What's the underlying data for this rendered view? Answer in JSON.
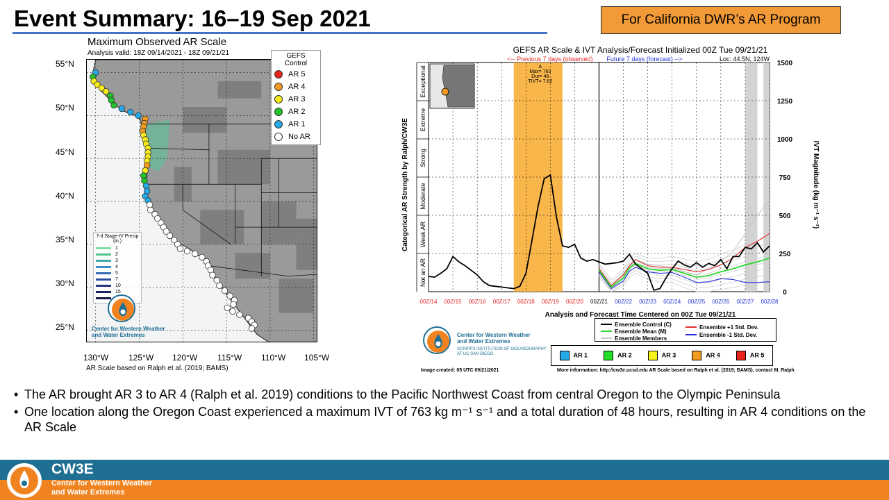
{
  "slide": {
    "title": "Event Summary: 16–19 Sep 2021",
    "badge": "For California DWR’s AR Program"
  },
  "map": {
    "title": "Maximum Observed AR Scale",
    "subtitle": "Analysis valid: 18Z 09/14/2021 - 18Z 09/21/21",
    "legend_header": "GEFS Control",
    "legend": [
      {
        "label": "AR 5",
        "color": "#e8221c"
      },
      {
        "label": "AR 4",
        "color": "#f39a1f"
      },
      {
        "label": "AR 3",
        "color": "#f7ec1c"
      },
      {
        "label": "AR 2",
        "color": "#22c22a"
      },
      {
        "label": "AR 1",
        "color": "#25a9e8"
      },
      {
        "label": "No AR",
        "color": "#ffffff"
      }
    ],
    "lat_labels": [
      "55°N",
      "50°N",
      "45°N",
      "40°N",
      "35°N",
      "30°N",
      "25°N"
    ],
    "lon_labels": [
      "130°W",
      "125°W",
      "120°W",
      "115°W",
      "110°W",
      "105°W"
    ],
    "precip_key_title": "7-d Stage-IV Precip (in.)",
    "precip_key": [
      "1",
      "2",
      "3",
      "4",
      "5",
      "7",
      "10",
      "15",
      "20"
    ],
    "credit": "AR Scale based on Ralph et al. (2019; BAMS)",
    "logo_text": [
      "Center for Western Weather",
      "and Water Extremes"
    ],
    "coast_points": [
      {
        "lat": 55.0,
        "lon": -130.0,
        "ar": 1
      },
      {
        "lat": 54.5,
        "lon": -130.3,
        "ar": 2
      },
      {
        "lat": 54.0,
        "lon": -130.2,
        "ar": 3
      },
      {
        "lat": 53.6,
        "lon": -129.8,
        "ar": 3
      },
      {
        "lat": 53.2,
        "lon": -129.3,
        "ar": 3
      },
      {
        "lat": 52.8,
        "lon": -128.8,
        "ar": 3
      },
      {
        "lat": 52.3,
        "lon": -128.3,
        "ar": 2
      },
      {
        "lat": 51.8,
        "lon": -128.2,
        "ar": 2
      },
      {
        "lat": 51.2,
        "lon": -127.9,
        "ar": 2
      },
      {
        "lat": 50.8,
        "lon": -127.0,
        "ar": 1
      },
      {
        "lat": 50.4,
        "lon": -126.0,
        "ar": 1
      },
      {
        "lat": 50.0,
        "lon": -125.1,
        "ar": 1
      },
      {
        "lat": 49.6,
        "lon": -124.3,
        "ar": 4
      },
      {
        "lat": 49.1,
        "lon": -124.4,
        "ar": 4
      },
      {
        "lat": 48.7,
        "lon": -124.5,
        "ar": 4
      },
      {
        "lat": 48.2,
        "lon": -124.6,
        "ar": 4
      },
      {
        "lat": 47.7,
        "lon": -124.5,
        "ar": 3
      },
      {
        "lat": 47.2,
        "lon": -124.3,
        "ar": 3
      },
      {
        "lat": 46.7,
        "lon": -124.2,
        "ar": 3
      },
      {
        "lat": 46.2,
        "lon": -124.0,
        "ar": 3
      },
      {
        "lat": 45.7,
        "lon": -124.0,
        "ar": 3
      },
      {
        "lat": 45.2,
        "lon": -124.0,
        "ar": 3
      },
      {
        "lat": 44.7,
        "lon": -124.1,
        "ar": 3
      },
      {
        "lat": 44.2,
        "lon": -124.1,
        "ar": 4
      },
      {
        "lat": 43.6,
        "lon": -124.3,
        "ar": 3
      },
      {
        "lat": 43.0,
        "lon": -124.5,
        "ar": 2
      },
      {
        "lat": 42.4,
        "lon": -124.4,
        "ar": 2
      },
      {
        "lat": 41.8,
        "lon": -124.2,
        "ar": 1
      },
      {
        "lat": 41.2,
        "lon": -124.1,
        "ar": 1
      },
      {
        "lat": 40.6,
        "lon": -124.3,
        "ar": 1
      },
      {
        "lat": 40.1,
        "lon": -124.0,
        "ar": 1
      },
      {
        "lat": 39.6,
        "lon": -123.8,
        "ar": 0
      },
      {
        "lat": 39.0,
        "lon": -123.7,
        "ar": 0
      },
      {
        "lat": 38.5,
        "lon": -123.2,
        "ar": 0
      },
      {
        "lat": 38.0,
        "lon": -122.9,
        "ar": 0
      },
      {
        "lat": 37.5,
        "lon": -122.5,
        "ar": 0
      },
      {
        "lat": 37.0,
        "lon": -122.2,
        "ar": 0
      },
      {
        "lat": 36.5,
        "lon": -121.9,
        "ar": 0
      },
      {
        "lat": 36.0,
        "lon": -121.5,
        "ar": 0
      },
      {
        "lat": 35.5,
        "lon": -121.0,
        "ar": 0
      },
      {
        "lat": 35.0,
        "lon": -120.6,
        "ar": 0
      },
      {
        "lat": 34.5,
        "lon": -120.3,
        "ar": 0
      },
      {
        "lat": 34.2,
        "lon": -119.5,
        "ar": 0
      },
      {
        "lat": 33.9,
        "lon": -118.6,
        "ar": 0
      },
      {
        "lat": 33.5,
        "lon": -117.8,
        "ar": 0
      },
      {
        "lat": 33.0,
        "lon": -117.3,
        "ar": 0
      },
      {
        "lat": 32.5,
        "lon": -117.1,
        "ar": 0
      },
      {
        "lat": 32.0,
        "lon": -116.8,
        "ar": 0
      },
      {
        "lat": 31.4,
        "lon": -116.6,
        "ar": 0
      },
      {
        "lat": 30.8,
        "lon": -116.1,
        "ar": 0
      },
      {
        "lat": 30.2,
        "lon": -115.8,
        "ar": 0
      },
      {
        "lat": 29.6,
        "lon": -115.2,
        "ar": 0
      },
      {
        "lat": 29.0,
        "lon": -114.6,
        "ar": 0
      },
      {
        "lat": 28.5,
        "lon": -114.1,
        "ar": 0
      },
      {
        "lat": 28.0,
        "lon": -114.2,
        "ar": 0
      },
      {
        "lat": 27.6,
        "lon": -114.9,
        "ar": 0
      },
      {
        "lat": 27.2,
        "lon": -114.3,
        "ar": 0
      },
      {
        "lat": 26.8,
        "lon": -113.5,
        "ar": 0
      },
      {
        "lat": 26.4,
        "lon": -112.5,
        "ar": 0
      },
      {
        "lat": 26.0,
        "lon": -112.1,
        "ar": 0
      },
      {
        "lat": 25.6,
        "lon": -111.8,
        "ar": 0
      },
      {
        "lat": 25.2,
        "lon": -112.1,
        "ar": 0
      }
    ]
  },
  "chart_data": {
    "type": "line",
    "title": "GEFS AR Scale & IVT Analysis/Forecast Initialized 00Z Tue 09/21/21",
    "subtitle_left": "<-- Previous 7 days (observed)",
    "subtitle_right": "Future 7 days (forecast) -->",
    "location": "Loc: 44.5N, 124W",
    "xlabel": "Analysis and Forecast Time Centered on 00Z Tue 09/21/21",
    "ylabel_left": "Categorical AR Strength by Ralph/CW3E",
    "ylabel_right": "IVT Magnitude (kg m⁻¹ s⁻¹)",
    "x_ticks": [
      "00Z/14",
      "00Z/15",
      "00Z/16",
      "00Z/17",
      "00Z/18",
      "00Z/19",
      "00Z/20",
      "00Z/21",
      "00Z/22",
      "00Z/23",
      "00Z/24",
      "00Z/25",
      "00Z/26",
      "00Z/27",
      "00Z/28"
    ],
    "x_range_days": [
      14,
      28
    ],
    "y_ticks": [
      0,
      250,
      500,
      750,
      1000,
      1250,
      1500
    ],
    "ylim": [
      0,
      1500
    ],
    "categories_left": [
      {
        "label": "Not an AR",
        "from": 0,
        "to": 250
      },
      {
        "label": "Weak AR",
        "from": 250,
        "to": 500
      },
      {
        "label": "Moderate",
        "from": 500,
        "to": 750
      },
      {
        "label": "Strong",
        "from": 750,
        "to": 1000
      },
      {
        "label": "Extreme",
        "from": 1000,
        "to": 1250
      },
      {
        "label": "Exceptional",
        "from": 1250,
        "to": 1500
      }
    ],
    "ar_event": {
      "label": "A",
      "max_label": "Max= 763",
      "dur_label": "Dur= 48",
      "tivt_label": "TIVT= 7.62",
      "start_day": 17.5,
      "end_day": 19.5,
      "color": "#f9b64a"
    },
    "grey_bands": [
      {
        "start_day": 27.0,
        "end_day": 27.5
      },
      {
        "start_day": 27.75,
        "end_day": 28.0
      }
    ],
    "series": [
      {
        "name": "Ensemble Control (C)",
        "color": "#000000",
        "x": [
          14.0,
          14.25,
          14.5,
          14.75,
          15.0,
          15.25,
          15.5,
          15.75,
          16.0,
          16.25,
          16.5,
          16.75,
          17.0,
          17.25,
          17.5,
          17.75,
          18.0,
          18.25,
          18.5,
          18.75,
          19.0,
          19.25,
          19.5,
          19.75,
          20.0,
          20.25,
          20.5,
          20.75,
          21.0,
          21.25,
          21.5,
          21.75,
          22.0,
          22.25,
          22.5,
          22.75,
          23.0,
          23.25,
          23.5,
          23.75,
          24.0,
          24.25,
          24.5,
          24.75,
          25.0,
          25.25,
          25.5,
          25.75,
          26.0,
          26.25,
          26.5,
          26.75,
          27.0,
          27.25,
          27.5,
          27.75,
          28.0
        ],
        "values": [
          100,
          95,
          120,
          150,
          230,
          195,
          170,
          140,
          110,
          65,
          40,
          35,
          30,
          25,
          20,
          35,
          120,
          340,
          560,
          740,
          763,
          490,
          300,
          290,
          310,
          220,
          200,
          210,
          195,
          180,
          185,
          190,
          200,
          245,
          180,
          150,
          120,
          10,
          20,
          90,
          150,
          200,
          175,
          160,
          190,
          160,
          185,
          170,
          210,
          150,
          230,
          230,
          290,
          280,
          320,
          260,
          300
        ]
      },
      {
        "name": "Ensemble Mean (M)",
        "color": "#2bd62b",
        "x": [
          21.0,
          21.5,
          22.0,
          22.25,
          22.5,
          23.0,
          23.5,
          24.0,
          24.5,
          25.0,
          25.5,
          26.0,
          26.5,
          27.0,
          27.5,
          28.0
        ],
        "values": [
          140,
          30,
          90,
          155,
          185,
          150,
          140,
          145,
          120,
          95,
          105,
          130,
          150,
          175,
          195,
          220
        ]
      },
      {
        "name": "Ensemble +1 Std. Dev.",
        "color": "#e03030",
        "x": [
          21.0,
          21.5,
          22.0,
          22.25,
          22.5,
          23.0,
          23.5,
          24.0,
          24.5,
          25.0,
          25.5,
          26.0,
          26.5,
          27.0,
          27.5,
          28.0
        ],
        "values": [
          150,
          40,
          110,
          170,
          210,
          170,
          160,
          160,
          145,
          130,
          145,
          175,
          220,
          290,
          330,
          380
        ]
      },
      {
        "name": "Ensemble -1 Std. Dev.",
        "color": "#2a30d8",
        "x": [
          21.0,
          21.5,
          22.0,
          22.25,
          22.5,
          23.0,
          23.5,
          24.0,
          24.5,
          25.0,
          25.5,
          26.0,
          26.5,
          27.0,
          27.5,
          28.0
        ],
        "values": [
          130,
          20,
          70,
          135,
          160,
          130,
          120,
          125,
          95,
          60,
          65,
          85,
          80,
          60,
          60,
          65
        ]
      },
      {
        "name": "Ensemble Members",
        "color": "#c8c8c8",
        "x": [
          21.0,
          21.5,
          22.0,
          22.5,
          23.0,
          23.5,
          24.0,
          24.5,
          25.0,
          25.5,
          26.0,
          26.5,
          27.0,
          27.5,
          28.0
        ],
        "values": [
          145,
          35,
          120,
          210,
          180,
          170,
          150,
          130,
          110,
          150,
          200,
          260,
          380,
          500,
          600
        ]
      }
    ],
    "legend": [
      {
        "label": "Ensemble Control (C)",
        "color": "#000000"
      },
      {
        "label": "Ensemble Mean (M)",
        "color": "#2bd62b"
      },
      {
        "label": "Ensemble Members",
        "color": "#c8c8c8"
      },
      {
        "label": "Ensemble +1 Std. Dev.",
        "color": "#e03030"
      },
      {
        "label": "Ensemble -1 Std. Dev.",
        "color": "#2a30d8"
      }
    ],
    "ar_scale_legend": [
      {
        "label": "AR 1",
        "color": "#25a9e8"
      },
      {
        "label": "AR 2",
        "color": "#22e02a"
      },
      {
        "label": "AR 3",
        "color": "#f7f31c"
      },
      {
        "label": "AR 4",
        "color": "#f39a1f"
      },
      {
        "label": "AR 5",
        "color": "#e8221c"
      }
    ],
    "image_created": "Image created: 05 UTC 09/21/2021",
    "more_info": "More information: http://cw3e.ucsd.edu  AR Scale based on Ralph et al. (2019; BAMS), contact M. Ralph",
    "logo_text": [
      "Center for Western Weather",
      "and Water Extremes"
    ],
    "logo_subtext": [
      "SCRIPPS INSTITUTION OF OCEANOGRAPHY",
      "AT UC SAN DIEGO"
    ]
  },
  "bullets": [
    "The AR brought AR 3 to AR 4 (Ralph et al. 2019) conditions to the Pacific Northwest Coast from central Oregon to the Olympic Peninsula",
    "One location along the Oregon Coast experienced a maximum  IVT of 763 kg m⁻¹ s⁻¹ and a total duration of 48 hours, resulting in AR 4 conditions on the AR Scale"
  ],
  "footer": {
    "brand": "CW3E",
    "line1": "Center for Western Weather",
    "line2": "and Water Extremes"
  }
}
